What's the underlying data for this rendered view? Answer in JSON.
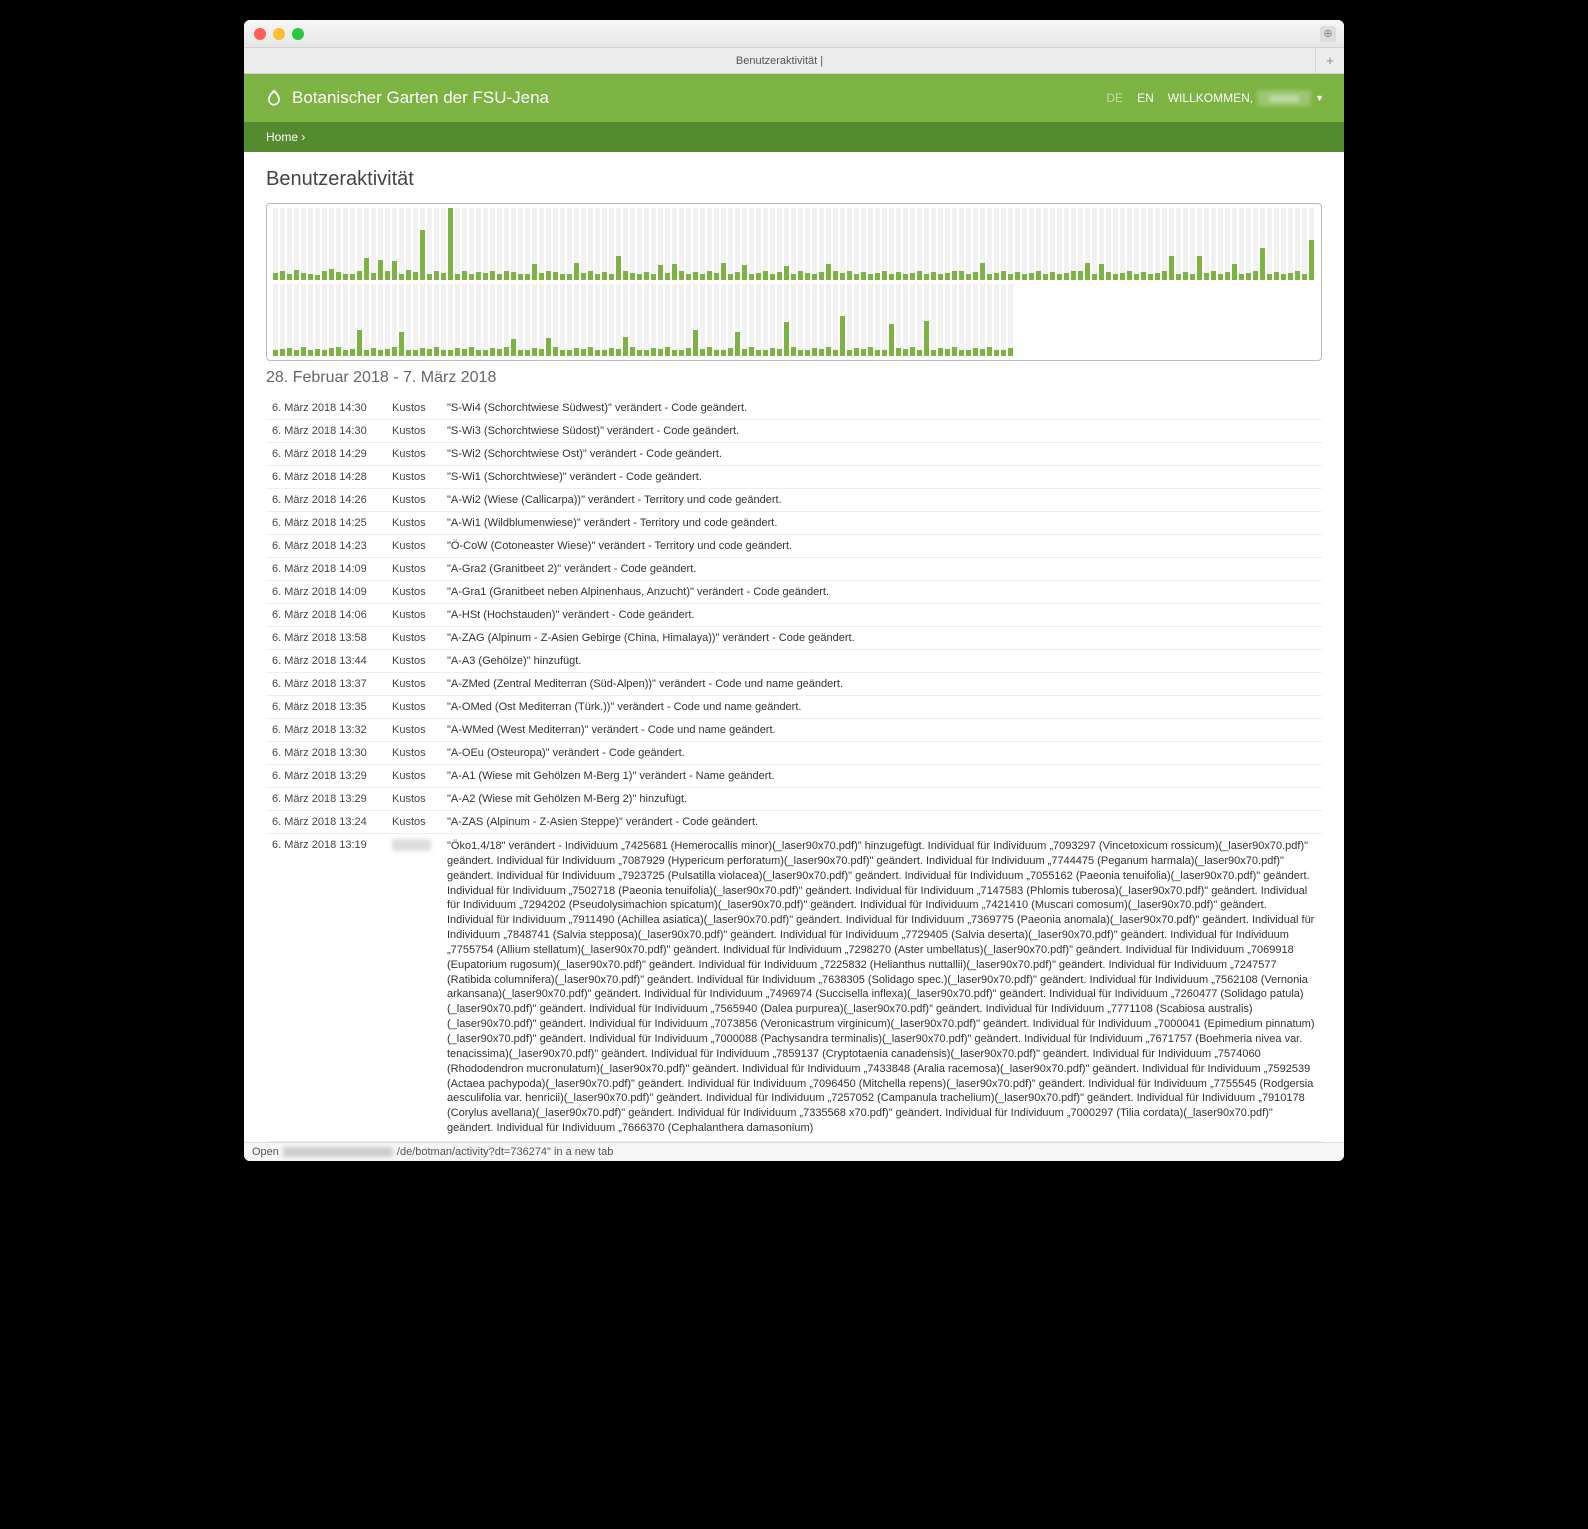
{
  "window": {
    "tab_title": "Benutzeraktivität |",
    "status_prefix": "Open",
    "status_suffix": "/de/botman/activity?dt=736274\" in a new tab"
  },
  "topbar": {
    "brand": "Botanischer Garten der FSU-Jena",
    "lang_de": "DE",
    "lang_en": "EN",
    "welcome": "WILLKOMMEN,"
  },
  "breadcrumb": {
    "home": "Home",
    "sep": "›"
  },
  "page": {
    "title": "Benutzeraktivität",
    "date_range": "28. Februar 2018 - 7. März 2018"
  },
  "chart": {
    "colors": {
      "bar": "#7cb342",
      "bg": "#f2f2f2"
    },
    "row1": [
      10,
      12,
      8,
      14,
      10,
      9,
      7,
      12,
      15,
      11,
      9,
      8,
      12,
      30,
      10,
      28,
      12,
      26,
      9,
      14,
      11,
      70,
      8,
      12,
      10,
      100,
      9,
      12,
      8,
      11,
      10,
      13,
      9,
      12,
      11,
      8,
      9,
      22,
      10,
      12,
      11,
      9,
      8,
      24,
      10,
      12,
      9,
      11,
      8,
      34,
      12,
      10,
      9,
      11,
      8,
      21,
      10,
      22,
      12,
      9,
      11,
      8,
      12,
      10,
      23,
      9,
      11,
      21,
      8,
      10,
      12,
      9,
      11,
      20,
      8,
      12,
      10,
      9,
      11,
      22,
      13,
      10,
      12,
      9,
      11,
      8,
      10,
      12,
      9,
      11,
      8,
      10,
      12,
      9,
      11,
      8,
      10,
      12,
      13,
      9,
      11,
      23,
      8,
      10,
      12,
      9,
      11,
      8,
      10,
      12,
      9,
      11,
      8,
      10,
      13,
      12,
      23,
      9,
      22,
      11,
      8,
      10,
      12,
      9,
      11,
      8,
      10,
      12,
      34,
      9,
      11,
      8,
      33,
      10,
      12,
      9,
      11,
      22,
      8,
      10,
      12,
      44,
      9,
      11,
      8,
      10,
      12,
      9,
      55
    ],
    "row2": [
      9,
      10,
      11,
      8,
      12,
      9,
      10,
      8,
      11,
      12,
      9,
      10,
      36,
      8,
      11,
      9,
      10,
      12,
      34,
      8,
      9,
      11,
      10,
      12,
      8,
      9,
      11,
      10,
      12,
      8,
      9,
      11,
      10,
      12,
      24,
      8,
      9,
      11,
      10,
      25,
      12,
      8,
      9,
      11,
      10,
      12,
      8,
      9,
      11,
      10,
      26,
      12,
      8,
      9,
      11,
      10,
      12,
      8,
      9,
      11,
      36,
      10,
      12,
      8,
      9,
      11,
      34,
      10,
      12,
      8,
      9,
      11,
      10,
      47,
      12,
      8,
      9,
      11,
      10,
      12,
      8,
      55,
      9,
      11,
      10,
      12,
      8,
      9,
      44,
      11,
      10,
      12,
      8,
      48,
      9,
      11,
      10,
      12,
      8,
      9,
      11,
      10,
      12,
      8,
      9,
      11
    ]
  },
  "rows": [
    {
      "t": "6. März 2018 14:30",
      "u": "Kustos",
      "d": "\"S-Wi4 (Schorchtwiese Südwest)\" verändert - Code geändert."
    },
    {
      "t": "6. März 2018 14:30",
      "u": "Kustos",
      "d": "\"S-Wi3 (Schorchtwiese Südost)\" verändert - Code geändert."
    },
    {
      "t": "6. März 2018 14:29",
      "u": "Kustos",
      "d": "\"S-Wi2 (Schorchtwiese Ost)\" verändert - Code geändert."
    },
    {
      "t": "6. März 2018 14:28",
      "u": "Kustos",
      "d": "\"S-Wi1 (Schorchtwiese)\" verändert - Code geändert."
    },
    {
      "t": "6. März 2018 14:26",
      "u": "Kustos",
      "d": "\"A-Wi2 (Wiese (Callicarpa))\" verändert - Territory und code geändert."
    },
    {
      "t": "6. März 2018 14:25",
      "u": "Kustos",
      "d": "\"A-Wi1 (Wildblumenwiese)\" verändert - Territory und code geändert."
    },
    {
      "t": "6. März 2018 14:23",
      "u": "Kustos",
      "d": "\"Ö-CoW (Cotoneaster Wiese)\" verändert - Territory und code geändert."
    },
    {
      "t": "6. März 2018 14:09",
      "u": "Kustos",
      "d": "\"A-Gra2 (Granitbeet 2)\" verändert - Code geändert."
    },
    {
      "t": "6. März 2018 14:09",
      "u": "Kustos",
      "d": "\"A-Gra1 (Granitbeet neben Alpinenhaus, Anzucht)\" verändert - Code geändert."
    },
    {
      "t": "6. März 2018 14:06",
      "u": "Kustos",
      "d": "\"A-HSt (Hochstauden)\" verändert - Code geändert."
    },
    {
      "t": "6. März 2018 13:58",
      "u": "Kustos",
      "d": "\"A-ZAG (Alpinum - Z-Asien Gebirge (China, Himalaya))\" verändert - Code geändert."
    },
    {
      "t": "6. März 2018 13:44",
      "u": "Kustos",
      "d": "\"A-A3 (Gehölze)\" hinzufügt."
    },
    {
      "t": "6. März 2018 13:37",
      "u": "Kustos",
      "d": "\"A-ZMed (Zentral Mediterran (Süd-Alpen))\" verändert - Code und name geändert."
    },
    {
      "t": "6. März 2018 13:35",
      "u": "Kustos",
      "d": "\"A-OMed (Ost Mediterran (Türk.))\" verändert - Code und name geändert."
    },
    {
      "t": "6. März 2018 13:32",
      "u": "Kustos",
      "d": "\"A-WMed (West Mediterran)\" verändert - Code und name geändert."
    },
    {
      "t": "6. März 2018 13:30",
      "u": "Kustos",
      "d": "\"A-OEu (Osteuropa)\" verändert - Code geändert."
    },
    {
      "t": "6. März 2018 13:29",
      "u": "Kustos",
      "d": "\"A-A1 (Wiese mit Gehölzen M-Berg 1)\" verändert - Name geändert."
    },
    {
      "t": "6. März 2018 13:29",
      "u": "Kustos",
      "d": "\"A-A2 (Wiese mit Gehölzen M-Berg 2)\" hinzufügt."
    },
    {
      "t": "6. März 2018 13:24",
      "u": "Kustos",
      "d": "\"A-ZAS (Alpinum - Z-Asien Steppe)\" verändert - Code geändert."
    }
  ],
  "longrow": {
    "t": "6. März 2018 13:19",
    "d": "\"Öko1.4/18\" verändert - Individuum „7425681 (Hemerocallis minor)(_laser90x70.pdf)\" hinzugefügt. Individual für Individuum „7093297 (Vincetoxicum rossicum)(_laser90x70.pdf)\" geändert. Individual für Individuum „7087929 (Hypericum perforatum)(_laser90x70.pdf)\" geändert. Individual für Individuum „7744475 (Peganum harmala)(_laser90x70.pdf)\" geändert. Individual für Individuum „7923725 (Pulsatilla violacea)(_laser90x70.pdf)\" geändert. Individual für Individuum „7055162 (Paeonia tenuifolia)(_laser90x70.pdf)\" geändert. Individual für Individuum „7502718 (Paeonia tenuifolia)(_laser90x70.pdf)\" geändert. Individual für Individuum „7147583 (Phlomis tuberosa)(_laser90x70.pdf)\" geändert. Individual für Individuum „7294202 (Pseudolysimachion spicatum)(_laser90x70.pdf)\" geändert. Individual für Individuum „7421410 (Muscari comosum)(_laser90x70.pdf)\" geändert. Individual für Individuum „7911490 (Achillea asiatica)(_laser90x70.pdf)\" geändert. Individual für Individuum „7369775 (Paeonia anomala)(_laser90x70.pdf)\" geändert. Individual für Individuum „7848741 (Salvia stepposa)(_laser90x70.pdf)\" geändert. Individual für Individuum „7729405 (Salvia deserta)(_laser90x70.pdf)\" geändert. Individual für Individuum „7755754 (Allium stellatum)(_laser90x70.pdf)\" geändert. Individual für Individuum „7298270 (Aster umbellatus)(_laser90x70.pdf)\" geändert. Individual für Individuum „7069918 (Eupatorium rugosum)(_laser90x70.pdf)\" geändert. Individual für Individuum „7225832 (Helianthus nuttallii)(_laser90x70.pdf)\" geändert. Individual für Individuum „7247577 (Ratibida columnifera)(_laser90x70.pdf)\" geändert. Individual für Individuum „7638305 (Solidago spec.)(_laser90x70.pdf)\" geändert. Individual für Individuum „7562108 (Vernonia arkansana)(_laser90x70.pdf)\" geändert. Individual für Individuum „7496974 (Succisella inflexa)(_laser90x70.pdf)\" geändert. Individual für Individuum „7260477 (Solidago patula)(_laser90x70.pdf)\" geändert. Individual für Individuum „7565940 (Dalea purpurea)(_laser90x70.pdf)\" geändert. Individual für Individuum „7771108 (Scabiosa australis)(_laser90x70.pdf)\" geändert. Individual für Individuum „7073856 (Veronicastrum virginicum)(_laser90x70.pdf)\" geändert. Individual für Individuum „7000041 (Epimedium pinnatum)(_laser90x70.pdf)\" geändert. Individual für Individuum „7000088 (Pachysandra terminalis)(_laser90x70.pdf)\" geändert. Individual für Individuum „7671757 (Boehmeria nivea var. tenacissima)(_laser90x70.pdf)\" geändert. Individual für Individuum „7859137 (Cryptotaenia canadensis)(_laser90x70.pdf)\" geändert. Individual für Individuum „7574060 (Rhododendron mucronulatum)(_laser90x70.pdf)\" geändert. Individual für Individuum „7433848 (Aralia racemosa)(_laser90x70.pdf)\" geändert. Individual für Individuum „7592539 (Actaea pachypoda)(_laser90x70.pdf)\" geändert. Individual für Individuum „7096450 (Mitchella repens)(_laser90x70.pdf)\" geändert. Individual für Individuum „7755545 (Rodgersia aesculifolia var. henricii)(_laser90x70.pdf)\" geändert. Individual für Individuum „7257052 (Campanula trachelium)(_laser90x70.pdf)\" geändert. Individual für Individuum „7910178 (Corylus avellana)(_laser90x70.pdf)\" geändert. Individual für Individuum „7335568 x70.pdf)\" geändert. Individual für Individuum „7000297 (Tilia cordata)(_laser90x70.pdf)\" geändert. Individual für Individuum „7666370 (Cephalanthera damasonium)"
  }
}
